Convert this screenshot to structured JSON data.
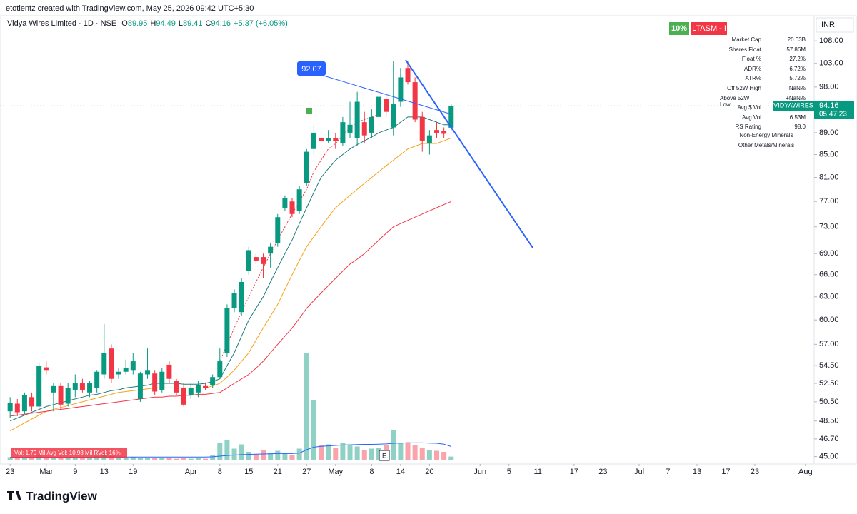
{
  "ui": {
    "credit": "etotientz created with TradingView.com, May 25, 2026 09:42 UTC+5:30",
    "symbol": "Vidya Wires Limited · 1D · NSE",
    "ohlc": [
      {
        "k": "O",
        "v": "89.95"
      },
      {
        "k": "H",
        "v": "94.49"
      },
      {
        "k": "L",
        "v": "89.41"
      },
      {
        "k": "C",
        "v": "94.16"
      }
    ],
    "change": "+5.37 (+6.05%)",
    "badges": [
      "10%",
      "LTASM - I"
    ],
    "currency": "INR",
    "ticker": "VIDYAWIRES",
    "countdown": "05:47:23",
    "callout": "92.07",
    "earnings": "E",
    "volume_legend": "Vol: 1.79 Mil   Avg Vol: 10.98 Mil   RVol: 16%",
    "logo": "TradingView",
    "stats": [
      [
        "Market Cap",
        "20.03B"
      ],
      [
        "Shares Float",
        "57.86M"
      ],
      [
        "Float %",
        "27.2%"
      ],
      [
        "ADR%",
        "6.72%"
      ],
      [
        "ATR%",
        "5.72%"
      ],
      [
        "Off 52W High",
        "NaN%"
      ],
      [
        "Above 52W Low",
        "+NaN%"
      ],
      [
        "Avg $ Vol",
        ""
      ],
      [
        "Avg Vol",
        "6.53M"
      ],
      [
        "RS Rating",
        "98.0"
      ]
    ],
    "sector": [
      "Non-Energy Minerals",
      "Other Metals/Minerals"
    ]
  },
  "chart_data": {
    "type": "candlestick",
    "log": true,
    "up_color": "#089981",
    "down_color": "#f23645",
    "ylim": [
      44.3,
      110
    ],
    "yticks": [
      {
        "value": 108,
        "label": "108.00"
      },
      {
        "value": 103,
        "label": "103.00"
      },
      {
        "value": 98,
        "label": "98.00"
      },
      {
        "value": 89,
        "label": "89.00"
      },
      {
        "value": 85,
        "label": "85.00"
      },
      {
        "value": 81,
        "label": "81.00"
      },
      {
        "value": 77,
        "label": "77.00"
      },
      {
        "value": 73,
        "label": "73.00"
      },
      {
        "value": 69,
        "label": "69.00"
      },
      {
        "value": 66,
        "label": "66.00"
      },
      {
        "value": 63,
        "label": "63.00"
      },
      {
        "value": 60,
        "label": "60.00"
      },
      {
        "value": 57,
        "label": "57.00"
      },
      {
        "value": 54.5,
        "label": "54.50"
      },
      {
        "value": 52.5,
        "label": "52.50"
      },
      {
        "value": 50.5,
        "label": "50.50"
      },
      {
        "value": 48.5,
        "label": "48.50"
      },
      {
        "value": 46.7,
        "label": "46.70"
      },
      {
        "value": 45,
        "label": "45.00"
      }
    ],
    "xlim": [
      -1.4,
      111.2
    ],
    "xticks": [
      {
        "value": 0,
        "label": "23"
      },
      {
        "value": 5,
        "label": "Mar"
      },
      9,
      13,
      {
        "value": 17,
        "label": "19"
      },
      {
        "value": 25,
        "label": "Apr"
      },
      {
        "value": 29,
        "label": "8"
      },
      {
        "value": 33,
        "label": "15"
      },
      {
        "value": 37,
        "label": "21"
      },
      {
        "value": 41,
        "label": "27"
      },
      {
        "value": 45,
        "label": "May"
      },
      {
        "value": 50,
        "label": "8"
      },
      {
        "value": 54,
        "label": "14"
      },
      {
        "value": 58,
        "label": "20"
      },
      {
        "value": 65,
        "label": "Jun"
      },
      {
        "value": 69,
        "label": "5"
      },
      {
        "value": 73,
        "label": "11"
      },
      {
        "value": 78,
        "label": "17"
      },
      {
        "value": 82,
        "label": "23"
      },
      {
        "value": 87,
        "label": "Jul"
      },
      {
        "value": 91,
        "label": "7"
      },
      {
        "value": 95,
        "label": "13"
      },
      {
        "value": 99,
        "label": "17"
      },
      {
        "value": 103,
        "label": "23"
      },
      {
        "value": 110,
        "label": "Aug"
      }
    ],
    "candles": {
      "open": [
        49.5,
        50.3,
        49.5,
        51.0,
        50.0,
        54.3,
        51.5,
        52.2,
        50.3,
        51.8,
        52.5,
        51.5,
        52.0,
        53.5,
        56.5,
        53.5,
        53.8,
        54.0,
        50.8,
        53.5,
        53.6,
        51.8,
        54.6,
        52.8,
        52.0,
        51.2,
        51.5,
        52.2,
        52.3,
        53.2,
        56.0,
        61.5,
        61.0,
        66.5,
        68.5,
        68.5,
        69.0,
        70.5,
        76.0,
        77.0,
        75.5,
        80.0,
        86.0,
        88.0,
        87.5,
        88.0,
        87.0,
        89.0,
        88.0,
        91.0,
        89.0,
        92.0,
        95.5,
        90.0,
        95.0,
        102.0,
        99.0,
        92.0,
        87.0,
        89.5,
        89.3,
        89.95
      ],
      "high": [
        51.0,
        50.8,
        51.5,
        51.5,
        54.8,
        55.0,
        52.5,
        52.5,
        52.5,
        53.5,
        53.0,
        52.8,
        54.0,
        59.5,
        57.0,
        54.2,
        55.2,
        56.0,
        53.8,
        56.5,
        54.0,
        54.2,
        55.0,
        53.0,
        52.5,
        52.5,
        52.8,
        52.6,
        53.5,
        56.5,
        62.0,
        64.0,
        65.5,
        70.0,
        69.0,
        69.0,
        70.5,
        75.0,
        78.0,
        77.5,
        79.5,
        86.0,
        90.5,
        89.5,
        89.5,
        89.0,
        92.0,
        95.0,
        97.0,
        93.0,
        93.5,
        97.0,
        96.0,
        103.5,
        102.0,
        103.5,
        100.0,
        93.0,
        89.5,
        91.0,
        90.0,
        94.49
      ],
      "low": [
        48.8,
        49.0,
        49.2,
        49.5,
        49.8,
        53.5,
        49.5,
        49.6,
        50.0,
        51.0,
        51.5,
        51.0,
        51.5,
        53.0,
        52.5,
        53.0,
        53.5,
        53.5,
        50.5,
        53.0,
        51.2,
        51.5,
        52.5,
        51.2,
        50.0,
        50.8,
        51.0,
        51.8,
        52.0,
        53.0,
        55.5,
        61.0,
        60.5,
        66.0,
        67.5,
        65.5,
        67.0,
        70.0,
        75.5,
        74.5,
        75.0,
        79.5,
        85.0,
        86.0,
        87.0,
        86.0,
        86.5,
        88.0,
        86.5,
        87.0,
        88.0,
        91.5,
        92.0,
        88.5,
        94.0,
        98.5,
        91.0,
        85.5,
        85.0,
        88.0,
        88.0,
        89.41
      ],
      "close": [
        50.4,
        49.4,
        51.2,
        50.0,
        54.5,
        54.0,
        52.2,
        50.2,
        52.0,
        52.5,
        51.8,
        52.5,
        53.8,
        56.0,
        53.0,
        53.8,
        54.2,
        55.0,
        53.6,
        54.0,
        51.6,
        53.8,
        53.0,
        51.5,
        50.2,
        52.0,
        52.3,
        52.0,
        53.2,
        55.0,
        61.5,
        63.5,
        65.0,
        69.5,
        68.0,
        67.5,
        70.0,
        74.5,
        77.5,
        75.0,
        79.0,
        85.5,
        89.0,
        87.5,
        88.0,
        87.5,
        91.0,
        90.5,
        95.0,
        88.5,
        92.0,
        96.0,
        93.0,
        94.5,
        100.0,
        99.0,
        91.5,
        87.5,
        88.5,
        89.0,
        88.8,
        94.16
      ]
    },
    "volume": [
      1.5,
      1.2,
      1.0,
      1.3,
      2.5,
      1.5,
      1.2,
      1.0,
      1.0,
      1.2,
      1.0,
      1.3,
      2.0,
      3.5,
      2.0,
      1.0,
      1.2,
      1.5,
      1.0,
      1.3,
      1.0,
      1.0,
      1.2,
      0.8,
      1.0,
      0.8,
      1.0,
      0.8,
      2.5,
      8.0,
      9.5,
      5.5,
      7.5,
      4.0,
      3.0,
      5.0,
      3.5,
      4.5,
      3.5,
      2.5,
      5.5,
      50,
      28,
      7,
      7.5,
      6,
      8,
      7,
      6.5,
      5,
      5.5,
      6,
      7,
      14,
      8,
      8.5,
      7,
      6,
      5,
      4.5,
      4,
      1.79
    ],
    "volume_avg": {
      "color": "#2962ff",
      "values": [
        1.5,
        1.5,
        1.5,
        1.5,
        1.5,
        1.5,
        1.5,
        1.5,
        1.5,
        1.5,
        1.5,
        1.5,
        1.5,
        1.6,
        1.6,
        1.6,
        1.6,
        1.6,
        1.6,
        1.6,
        1.6,
        1.6,
        1.6,
        1.6,
        1.6,
        1.6,
        1.6,
        1.6,
        1.7,
        2.0,
        2.3,
        2.5,
        2.7,
        2.8,
        2.9,
        3.0,
        3.1,
        3.2,
        3.2,
        3.2,
        3.4,
        5.0,
        6.2,
        6.6,
        6.8,
        7.0,
        7.2,
        7.3,
        7.4,
        7.5,
        7.5,
        7.6,
        7.7,
        8.0,
        8.1,
        8.2,
        8.2,
        8.2,
        8.1,
        8.0,
        7.6,
        6.5
      ]
    },
    "lines": [
      {
        "color": "#1e7b7b",
        "dash": false,
        "values": [
          48.5,
          48.8,
          49.1,
          49.4,
          49.7,
          50,
          50.2,
          50.4,
          50.6,
          50.8,
          51,
          51.2,
          51.3,
          51.5,
          51.7,
          51.8,
          52,
          52.1,
          52.2,
          52.3,
          52.5,
          52.5,
          52.5,
          52.5,
          52.4,
          52.4,
          52.4,
          52.5,
          52.7,
          53,
          54.5,
          56,
          58,
          60,
          61.5,
          63,
          65,
          67,
          69,
          71,
          73.5,
          76,
          78.5,
          81,
          82.5,
          84,
          85,
          86,
          86.8,
          87.5,
          88.2,
          89,
          89.5,
          90,
          91,
          92,
          92,
          92,
          91.5,
          91,
          90.5,
          90.5
        ]
      },
      {
        "color": "#f7a21b",
        "dash": false,
        "values": [
          47.5,
          47.9,
          48.3,
          48.7,
          49.1,
          49.5,
          49.7,
          49.9,
          50.1,
          50.3,
          50.5,
          50.7,
          50.9,
          51.1,
          51.3,
          51.5,
          51.6,
          51.7,
          51.8,
          51.9,
          52,
          52,
          52,
          52,
          52,
          52,
          52,
          52,
          52.2,
          52.5,
          53.2,
          54,
          55,
          56,
          57.5,
          59,
          60.5,
          62,
          64,
          66,
          68,
          70,
          71.5,
          73,
          74.5,
          76,
          77,
          78,
          79,
          80,
          81,
          82,
          83,
          84,
          85,
          86,
          86.5,
          87,
          87,
          87,
          87.5,
          88
        ]
      },
      {
        "color": "#f23645",
        "dash": false,
        "values": [
          49,
          49.1,
          49.2,
          49.3,
          49.4,
          49.5,
          49.6,
          49.7,
          49.8,
          49.9,
          50,
          50.1,
          50.2,
          50.3,
          50.4,
          50.5,
          50.6,
          50.7,
          50.8,
          50.9,
          51,
          51,
          51.1,
          51.1,
          51.2,
          51.2,
          51.3,
          51.3,
          51.4,
          51.5,
          52,
          52.5,
          53,
          53.5,
          54.2,
          55,
          56,
          57,
          58,
          59,
          60.2,
          61.5,
          62.5,
          63.5,
          64.5,
          65.5,
          66.5,
          67.5,
          68.2,
          69,
          70,
          71,
          72,
          73,
          73.5,
          74,
          74.5,
          75,
          75.5,
          76,
          76.5,
          77
        ]
      },
      {
        "color": "#f23645",
        "dash": true,
        "values": [
          null,
          null,
          null,
          null,
          null,
          null,
          null,
          null,
          null,
          null,
          null,
          null,
          null,
          null,
          null,
          null,
          null,
          null,
          null,
          null,
          null,
          null,
          null,
          null,
          null,
          null,
          null,
          null,
          null,
          55,
          57,
          59,
          61,
          63,
          65,
          67,
          69,
          71,
          73,
          75,
          77,
          79,
          82,
          84,
          86,
          87,
          88.5,
          90,
          91,
          91.5,
          92,
          92.5,
          null,
          null,
          null,
          null,
          null,
          null,
          null,
          null,
          null,
          null
        ]
      }
    ]
  }
}
